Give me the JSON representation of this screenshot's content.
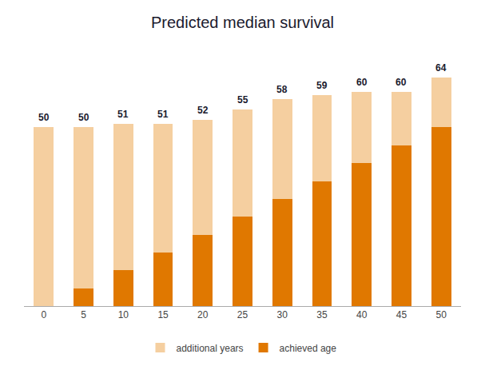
{
  "chart_data": {
    "type": "bar",
    "title": "Predicted median survival",
    "categories": [
      0,
      5,
      10,
      15,
      20,
      25,
      30,
      35,
      40,
      45,
      50
    ],
    "stacked": true,
    "series": [
      {
        "name": "achieved age",
        "color": "#E07800",
        "values": [
          0,
          5,
          10,
          15,
          20,
          25,
          30,
          35,
          40,
          45,
          50
        ]
      },
      {
        "name": "additional years",
        "color": "#F5CFA0",
        "values": [
          50,
          45,
          41,
          36,
          32,
          30,
          28,
          24,
          20,
          15,
          14
        ]
      }
    ],
    "totals": [
      50,
      50,
      51,
      51,
      52,
      55,
      58,
      59,
      60,
      60,
      64
    ],
    "ylim": [
      0,
      70
    ],
    "tick_labels": "x",
    "grid": false,
    "legend": "bottom"
  }
}
